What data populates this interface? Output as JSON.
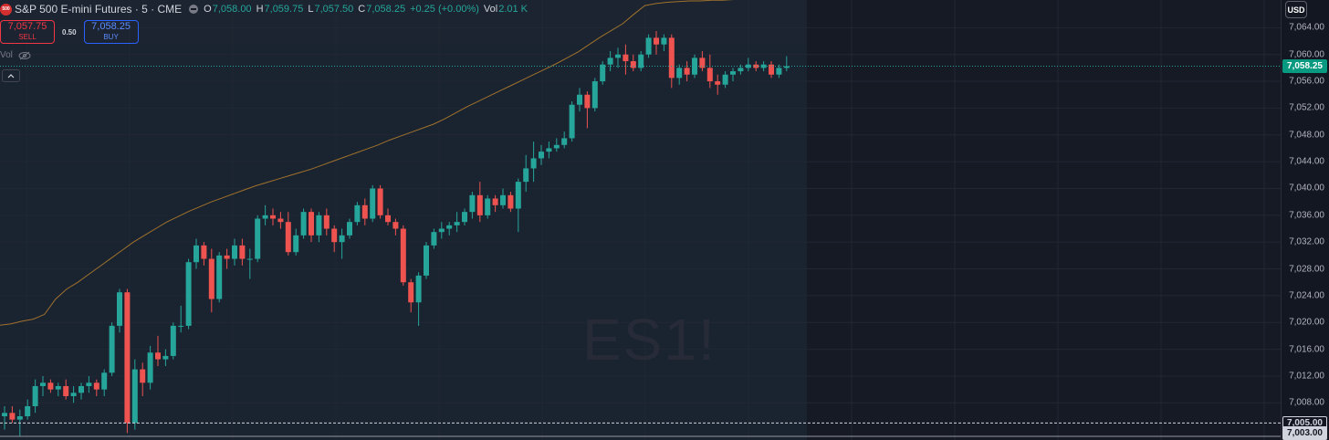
{
  "legend": {
    "badge": "500",
    "title": "S&P 500 E-mini Futures · 5 · CME",
    "open_label": "O",
    "open": "7,058.00",
    "high_label": "H",
    "high": "7,059.75",
    "low_label": "L",
    "low": "7,057.50",
    "close_label": "C",
    "close": "7,058.25",
    "change": "+0.25 (+0.00%)",
    "vol_label": "Vol",
    "vol": "2.01 K"
  },
  "trade": {
    "sell_price": "7,057.75",
    "sell_label": "SELL",
    "spread": "0.50",
    "buy_price": "7,058.25",
    "buy_label": "BUY"
  },
  "indicator": {
    "label": "Vol"
  },
  "watermark": "ES1!",
  "currency": "USD",
  "tags": {
    "last": "7,058.25",
    "level_a": "7,005.00",
    "level_b": "7,003.00"
  },
  "colors": {
    "up": "#26a69a",
    "down": "#ef5350",
    "vwap": "#a0722c",
    "bg": "#161a25",
    "grid": "#222734"
  },
  "chart_data": {
    "type": "candlestick",
    "title": "",
    "xlabel": "",
    "ylabel": "",
    "ylim": [
      7003,
      7068
    ],
    "y_ticks": [
      7008,
      7012,
      7016,
      7020,
      7024,
      7028,
      7032,
      7036,
      7040,
      7044,
      7048,
      7052,
      7056,
      7060,
      7064
    ],
    "y_tick_labels": [
      "7,008.00",
      "7,012.00",
      "7,016.00",
      "7,020.00",
      "7,024.00",
      "7,028.00",
      "7,032.00",
      "7,036.00",
      "7,040.00",
      "7,044.00",
      "7,048.00",
      "7,052.00",
      "7,056.00",
      "7,060.00",
      "7,064.00"
    ],
    "grid": true,
    "last_price": 7058.25,
    "horizontal_levels": [
      7005.0,
      7003.0
    ],
    "vwap": [
      7019.6,
      7019.8,
      7020.2,
      7020.5,
      7021.2,
      7023.5,
      7025.0,
      7026.0,
      7027.2,
      7028.4,
      7029.6,
      7030.8,
      7032.0,
      7033.0,
      7034.0,
      7035.0,
      7035.8,
      7036.6,
      7037.3,
      7038.0,
      7038.6,
      7039.2,
      7039.8,
      7040.4,
      7040.9,
      7041.4,
      7041.9,
      7042.4,
      7042.9,
      7043.5,
      7044.1,
      7044.7,
      7045.3,
      7045.9,
      7046.5,
      7047.2,
      7047.8,
      7048.4,
      7049.0,
      7049.6,
      7050.4,
      7051.3,
      7052.2,
      7053.0,
      7053.8,
      7054.6,
      7055.4,
      7056.2,
      7057.0,
      7057.8,
      7058.6,
      7059.5,
      7060.4,
      7061.5,
      7062.6,
      7063.6,
      7064.6,
      7066.0,
      7067.3,
      7067.6,
      7067.8,
      7067.9,
      7068.0,
      7068.0,
      7068.1,
      7068.1,
      7068.2,
      7068.2,
      7068.3,
      7068.3,
      7068.4,
      7068.4,
      7068.5
    ],
    "candles": [
      {
        "o": 7006.0,
        "h": 7007.5,
        "l": 7004.0,
        "c": 7006.5
      },
      {
        "o": 7006.5,
        "h": 7007.5,
        "l": 7005.0,
        "c": 7005.5
      },
      {
        "o": 7005.5,
        "h": 7007.0,
        "l": 7003.0,
        "c": 7006.0
      },
      {
        "o": 7006.0,
        "h": 7008.5,
        "l": 7005.5,
        "c": 7007.5
      },
      {
        "o": 7007.5,
        "h": 7011.5,
        "l": 7006.5,
        "c": 7010.5
      },
      {
        "o": 7010.5,
        "h": 7012.0,
        "l": 7009.0,
        "c": 7011.0
      },
      {
        "o": 7011.0,
        "h": 7011.5,
        "l": 7009.5,
        "c": 7010.0
      },
      {
        "o": 7010.0,
        "h": 7011.0,
        "l": 7009.0,
        "c": 7010.5
      },
      {
        "o": 7010.5,
        "h": 7011.5,
        "l": 7008.5,
        "c": 7009.0
      },
      {
        "o": 7009.0,
        "h": 7010.5,
        "l": 7008.0,
        "c": 7009.5
      },
      {
        "o": 7009.5,
        "h": 7011.0,
        "l": 7008.5,
        "c": 7010.5
      },
      {
        "o": 7010.5,
        "h": 7012.0,
        "l": 7009.5,
        "c": 7011.0
      },
      {
        "o": 7011.0,
        "h": 7011.5,
        "l": 7009.0,
        "c": 7010.0
      },
      {
        "o": 7010.0,
        "h": 7013.0,
        "l": 7009.0,
        "c": 7012.5
      },
      {
        "o": 7012.5,
        "h": 7020.0,
        "l": 7012.0,
        "c": 7019.5
      },
      {
        "o": 7019.5,
        "h": 7025.0,
        "l": 7018.5,
        "c": 7024.5
      },
      {
        "o": 7024.5,
        "h": 7025.0,
        "l": 7003.5,
        "c": 7005.0
      },
      {
        "o": 7005.0,
        "h": 7014.5,
        "l": 7004.0,
        "c": 7013.0
      },
      {
        "o": 7013.0,
        "h": 7014.0,
        "l": 7009.0,
        "c": 7011.0
      },
      {
        "o": 7011.0,
        "h": 7016.5,
        "l": 7010.0,
        "c": 7015.5
      },
      {
        "o": 7015.5,
        "h": 7018.0,
        "l": 7013.5,
        "c": 7014.5
      },
      {
        "o": 7014.5,
        "h": 7016.0,
        "l": 7013.5,
        "c": 7015.0
      },
      {
        "o": 7015.0,
        "h": 7020.0,
        "l": 7014.5,
        "c": 7019.5
      },
      {
        "o": 7019.5,
        "h": 7022.5,
        "l": 7018.5,
        "c": 7019.5
      },
      {
        "o": 7019.5,
        "h": 7029.5,
        "l": 7019.0,
        "c": 7029.0
      },
      {
        "o": 7029.0,
        "h": 7032.5,
        "l": 7028.0,
        "c": 7031.5
      },
      {
        "o": 7031.5,
        "h": 7032.0,
        "l": 7028.5,
        "c": 7029.5
      },
      {
        "o": 7029.5,
        "h": 7031.0,
        "l": 7021.5,
        "c": 7023.5
      },
      {
        "o": 7023.5,
        "h": 7030.5,
        "l": 7023.0,
        "c": 7030.0
      },
      {
        "o": 7030.0,
        "h": 7031.0,
        "l": 7028.0,
        "c": 7029.5
      },
      {
        "o": 7029.5,
        "h": 7032.5,
        "l": 7028.5,
        "c": 7031.5
      },
      {
        "o": 7031.5,
        "h": 7032.5,
        "l": 7028.5,
        "c": 7029.5
      },
      {
        "o": 7029.5,
        "h": 7031.0,
        "l": 7026.5,
        "c": 7029.5
      },
      {
        "o": 7029.5,
        "h": 7036.0,
        "l": 7029.0,
        "c": 7035.5
      },
      {
        "o": 7035.5,
        "h": 7037.5,
        "l": 7034.5,
        "c": 7036.0
      },
      {
        "o": 7036.0,
        "h": 7037.0,
        "l": 7034.5,
        "c": 7035.5
      },
      {
        "o": 7035.5,
        "h": 7036.5,
        "l": 7034.0,
        "c": 7035.0
      },
      {
        "o": 7035.0,
        "h": 7036.5,
        "l": 7030.0,
        "c": 7030.5
      },
      {
        "o": 7030.5,
        "h": 7034.0,
        "l": 7030.0,
        "c": 7033.0
      },
      {
        "o": 7033.0,
        "h": 7037.0,
        "l": 7032.5,
        "c": 7036.5
      },
      {
        "o": 7036.5,
        "h": 7037.0,
        "l": 7032.0,
        "c": 7033.0
      },
      {
        "o": 7033.0,
        "h": 7036.5,
        "l": 7032.0,
        "c": 7036.0
      },
      {
        "o": 7036.0,
        "h": 7037.0,
        "l": 7033.0,
        "c": 7034.0
      },
      {
        "o": 7034.0,
        "h": 7034.5,
        "l": 7030.5,
        "c": 7032.0
      },
      {
        "o": 7032.0,
        "h": 7034.0,
        "l": 7029.5,
        "c": 7033.0
      },
      {
        "o": 7033.0,
        "h": 7035.5,
        "l": 7032.5,
        "c": 7035.0
      },
      {
        "o": 7035.0,
        "h": 7038.0,
        "l": 7034.5,
        "c": 7037.5
      },
      {
        "o": 7037.5,
        "h": 7038.5,
        "l": 7034.5,
        "c": 7035.5
      },
      {
        "o": 7035.5,
        "h": 7040.5,
        "l": 7035.0,
        "c": 7040.0
      },
      {
        "o": 7040.0,
        "h": 7040.5,
        "l": 7035.5,
        "c": 7036.0
      },
      {
        "o": 7036.0,
        "h": 7037.0,
        "l": 7034.5,
        "c": 7035.0
      },
      {
        "o": 7035.0,
        "h": 7035.5,
        "l": 7033.0,
        "c": 7034.0
      },
      {
        "o": 7034.0,
        "h": 7034.5,
        "l": 7025.5,
        "c": 7026.0
      },
      {
        "o": 7026.0,
        "h": 7026.5,
        "l": 7021.5,
        "c": 7023.0
      },
      {
        "o": 7023.0,
        "h": 7027.5,
        "l": 7019.5,
        "c": 7027.0
      },
      {
        "o": 7027.0,
        "h": 7032.0,
        "l": 7026.5,
        "c": 7031.5
      },
      {
        "o": 7031.5,
        "h": 7034.0,
        "l": 7031.0,
        "c": 7033.5
      },
      {
        "o": 7033.5,
        "h": 7035.0,
        "l": 7032.5,
        "c": 7034.0
      },
      {
        "o": 7034.0,
        "h": 7035.0,
        "l": 7033.0,
        "c": 7034.5
      },
      {
        "o": 7034.5,
        "h": 7036.5,
        "l": 7033.5,
        "c": 7035.0
      },
      {
        "o": 7035.0,
        "h": 7037.0,
        "l": 7034.5,
        "c": 7036.5
      },
      {
        "o": 7036.5,
        "h": 7039.5,
        "l": 7035.5,
        "c": 7039.0
      },
      {
        "o": 7039.0,
        "h": 7041.0,
        "l": 7035.0,
        "c": 7036.0
      },
      {
        "o": 7036.0,
        "h": 7039.0,
        "l": 7035.5,
        "c": 7038.5
      },
      {
        "o": 7038.5,
        "h": 7039.0,
        "l": 7036.5,
        "c": 7037.5
      },
      {
        "o": 7037.5,
        "h": 7040.0,
        "l": 7037.0,
        "c": 7039.0
      },
      {
        "o": 7039.0,
        "h": 7039.5,
        "l": 7036.5,
        "c": 7037.0
      },
      {
        "o": 7037.0,
        "h": 7041.5,
        "l": 7033.5,
        "c": 7041.0
      },
      {
        "o": 7041.0,
        "h": 7045.0,
        "l": 7039.5,
        "c": 7043.0
      },
      {
        "o": 7043.0,
        "h": 7047.0,
        "l": 7041.0,
        "c": 7044.5
      },
      {
        "o": 7044.5,
        "h": 7046.5,
        "l": 7043.5,
        "c": 7045.5
      },
      {
        "o": 7045.5,
        "h": 7047.0,
        "l": 7044.5,
        "c": 7046.0
      },
      {
        "o": 7046.0,
        "h": 7047.5,
        "l": 7045.5,
        "c": 7046.5
      },
      {
        "o": 7046.5,
        "h": 7048.5,
        "l": 7046.0,
        "c": 7047.5
      },
      {
        "o": 7047.5,
        "h": 7053.0,
        "l": 7047.0,
        "c": 7052.5
      },
      {
        "o": 7052.5,
        "h": 7055.0,
        "l": 7051.5,
        "c": 7054.0
      },
      {
        "o": 7054.0,
        "h": 7054.5,
        "l": 7049.0,
        "c": 7052.0
      },
      {
        "o": 7052.0,
        "h": 7056.5,
        "l": 7051.5,
        "c": 7056.0
      },
      {
        "o": 7056.0,
        "h": 7059.0,
        "l": 7055.5,
        "c": 7058.5
      },
      {
        "o": 7058.5,
        "h": 7060.5,
        "l": 7057.5,
        "c": 7059.5
      },
      {
        "o": 7059.5,
        "h": 7061.0,
        "l": 7058.0,
        "c": 7060.0
      },
      {
        "o": 7060.0,
        "h": 7061.5,
        "l": 7057.0,
        "c": 7059.0
      },
      {
        "o": 7059.0,
        "h": 7060.0,
        "l": 7057.5,
        "c": 7058.0
      },
      {
        "o": 7058.0,
        "h": 7060.5,
        "l": 7057.5,
        "c": 7060.0
      },
      {
        "o": 7060.0,
        "h": 7063.0,
        "l": 7059.5,
        "c": 7062.5
      },
      {
        "o": 7062.5,
        "h": 7063.5,
        "l": 7060.0,
        "c": 7061.5
      },
      {
        "o": 7061.5,
        "h": 7063.0,
        "l": 7060.5,
        "c": 7062.5
      },
      {
        "o": 7062.5,
        "h": 7063.0,
        "l": 7055.0,
        "c": 7056.5
      },
      {
        "o": 7056.5,
        "h": 7058.5,
        "l": 7055.5,
        "c": 7058.0
      },
      {
        "o": 7058.0,
        "h": 7059.0,
        "l": 7056.0,
        "c": 7057.0
      },
      {
        "o": 7057.0,
        "h": 7060.0,
        "l": 7056.5,
        "c": 7059.5
      },
      {
        "o": 7059.5,
        "h": 7060.5,
        "l": 7057.5,
        "c": 7058.0
      },
      {
        "o": 7058.0,
        "h": 7060.0,
        "l": 7055.0,
        "c": 7056.0
      },
      {
        "o": 7056.0,
        "h": 7057.0,
        "l": 7054.0,
        "c": 7055.5
      },
      {
        "o": 7055.5,
        "h": 7057.5,
        "l": 7055.0,
        "c": 7057.0
      },
      {
        "o": 7057.0,
        "h": 7058.0,
        "l": 7056.0,
        "c": 7057.5
      },
      {
        "o": 7057.5,
        "h": 7058.5,
        "l": 7057.0,
        "c": 7058.0
      },
      {
        "o": 7058.0,
        "h": 7059.5,
        "l": 7057.5,
        "c": 7058.5
      },
      {
        "o": 7058.5,
        "h": 7059.0,
        "l": 7057.5,
        "c": 7058.0
      },
      {
        "o": 7058.0,
        "h": 7059.0,
        "l": 7057.5,
        "c": 7058.5
      },
      {
        "o": 7058.5,
        "h": 7059.0,
        "l": 7056.5,
        "c": 7057.0
      },
      {
        "o": 7057.0,
        "h": 7058.5,
        "l": 7056.5,
        "c": 7058.0
      },
      {
        "o": 7058.0,
        "h": 7059.75,
        "l": 7057.5,
        "c": 7058.25
      }
    ]
  }
}
